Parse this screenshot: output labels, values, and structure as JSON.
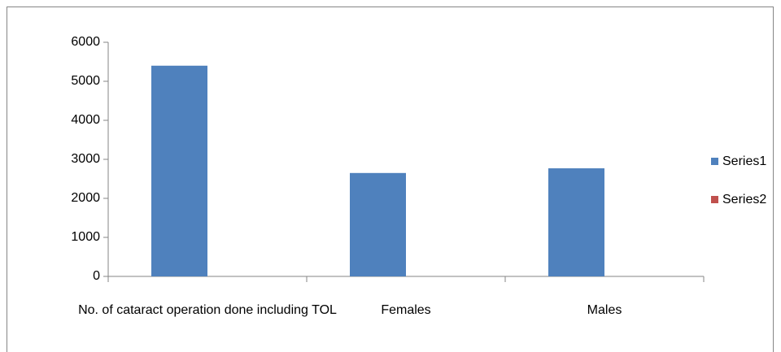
{
  "chart_data": {
    "type": "bar",
    "categories": [
      "No. of cataract operation done including TOL",
      "Females",
      "Males"
    ],
    "series": [
      {
        "name": "Series1",
        "color": "#4f81bd",
        "values": [
          5400,
          2650,
          2770
        ]
      },
      {
        "name": "Series2",
        "color": "#c0504d",
        "values": [
          null,
          null,
          null
        ]
      }
    ],
    "ylim": [
      0,
      6000
    ],
    "yticks": [
      0,
      1000,
      2000,
      3000,
      4000,
      5000,
      6000
    ],
    "grid": false,
    "legend": "right"
  }
}
